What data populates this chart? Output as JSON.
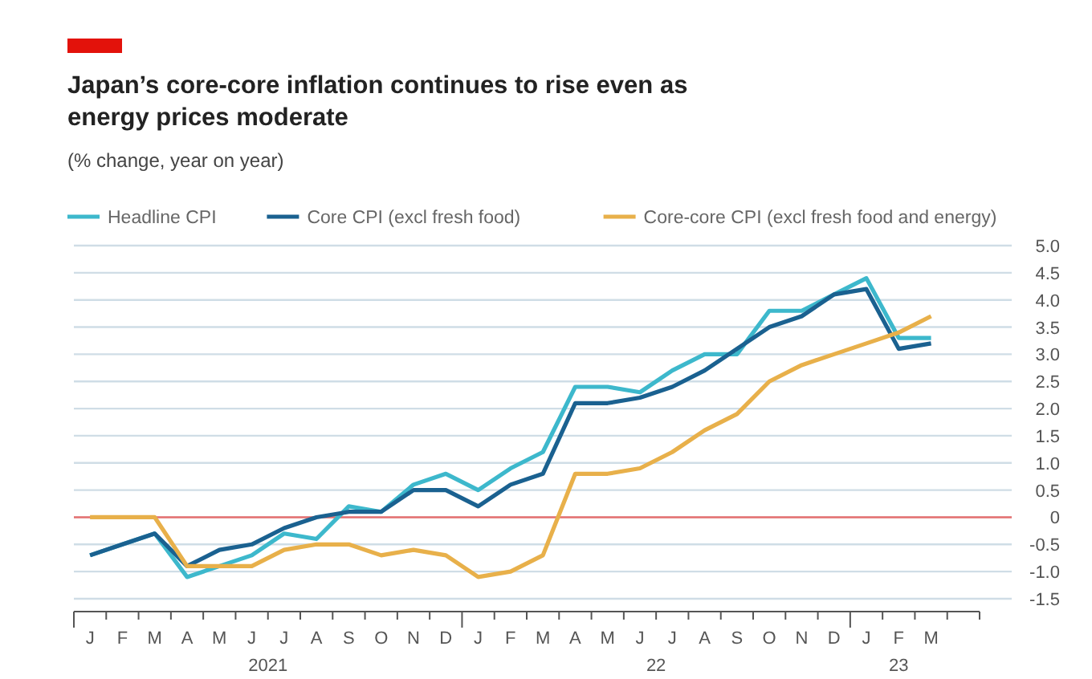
{
  "chart_data": {
    "type": "line",
    "title": "Japan’s core-core inflation continues to rise even as energy prices moderate",
    "subtitle": "(% change, year on year)",
    "categories": [
      "J",
      "F",
      "M",
      "A",
      "M",
      "J",
      "J",
      "A",
      "S",
      "O",
      "N",
      "D",
      "J",
      "F",
      "M",
      "A",
      "M",
      "J",
      "J",
      "A",
      "S",
      "O",
      "N",
      "D",
      "J",
      "F",
      "M"
    ],
    "series": [
      {
        "name": "Headline CPI",
        "color": "#3db8cc",
        "values": [
          -0.7,
          -0.5,
          -0.3,
          -1.1,
          -0.9,
          -0.7,
          -0.3,
          -0.4,
          0.2,
          0.1,
          0.6,
          0.8,
          0.5,
          0.9,
          1.2,
          2.4,
          2.4,
          2.3,
          2.7,
          3.0,
          3.0,
          3.8,
          3.8,
          4.1,
          4.4,
          3.3,
          3.3
        ]
      },
      {
        "name": "Core CPI (excl fresh food)",
        "color": "#1a6190",
        "values": [
          -0.7,
          -0.5,
          -0.3,
          -0.9,
          -0.6,
          -0.5,
          -0.2,
          0,
          0.1,
          0.1,
          0.5,
          0.5,
          0.2,
          0.6,
          0.8,
          2.1,
          2.1,
          2.2,
          2.4,
          2.7,
          3.1,
          3.5,
          3.7,
          4.1,
          4.2,
          3.1,
          3.2
        ]
      },
      {
        "name": "Core-core CPI (excl fresh food and energy)",
        "color": "#e8b04a",
        "values": [
          0,
          0,
          0,
          -0.9,
          -0.9,
          -0.9,
          -0.6,
          -0.5,
          -0.5,
          -0.7,
          -0.6,
          -0.7,
          -1.1,
          -1.0,
          -0.7,
          0.8,
          0.8,
          0.9,
          1.2,
          1.6,
          1.9,
          2.5,
          2.8,
          3.0,
          3.2,
          3.4,
          3.7
        ]
      }
    ],
    "ylim": [
      -1.5,
      5.0
    ],
    "yticks": [
      {
        "value": -1.5,
        "label": "-1.5"
      },
      {
        "value": -1,
        "label": "-1.0"
      },
      {
        "value": -0.5,
        "label": "-0.5"
      },
      0,
      {
        "value": 0.5,
        "label": "0.5"
      },
      {
        "value": 1,
        "label": "1.0"
      },
      {
        "value": 1.5,
        "label": "1.5"
      },
      {
        "value": 2,
        "label": "2.0"
      },
      {
        "value": 2.5,
        "label": "2.5"
      },
      {
        "value": 3,
        "label": "3.0"
      },
      {
        "value": 3.5,
        "label": "3.5"
      },
      {
        "value": 4,
        "label": "4.0"
      },
      {
        "value": 4.5,
        "label": "4.5"
      },
      {
        "value": 5,
        "label": "5.0"
      }
    ],
    "ref_lines": [
      {
        "axis": "y",
        "value": 0,
        "color": "#e87070"
      }
    ],
    "annotations": [
      "2021",
      "22",
      "23"
    ],
    "grid": "y",
    "legend": "top left",
    "marker": "none",
    "line_style": "solid"
  }
}
